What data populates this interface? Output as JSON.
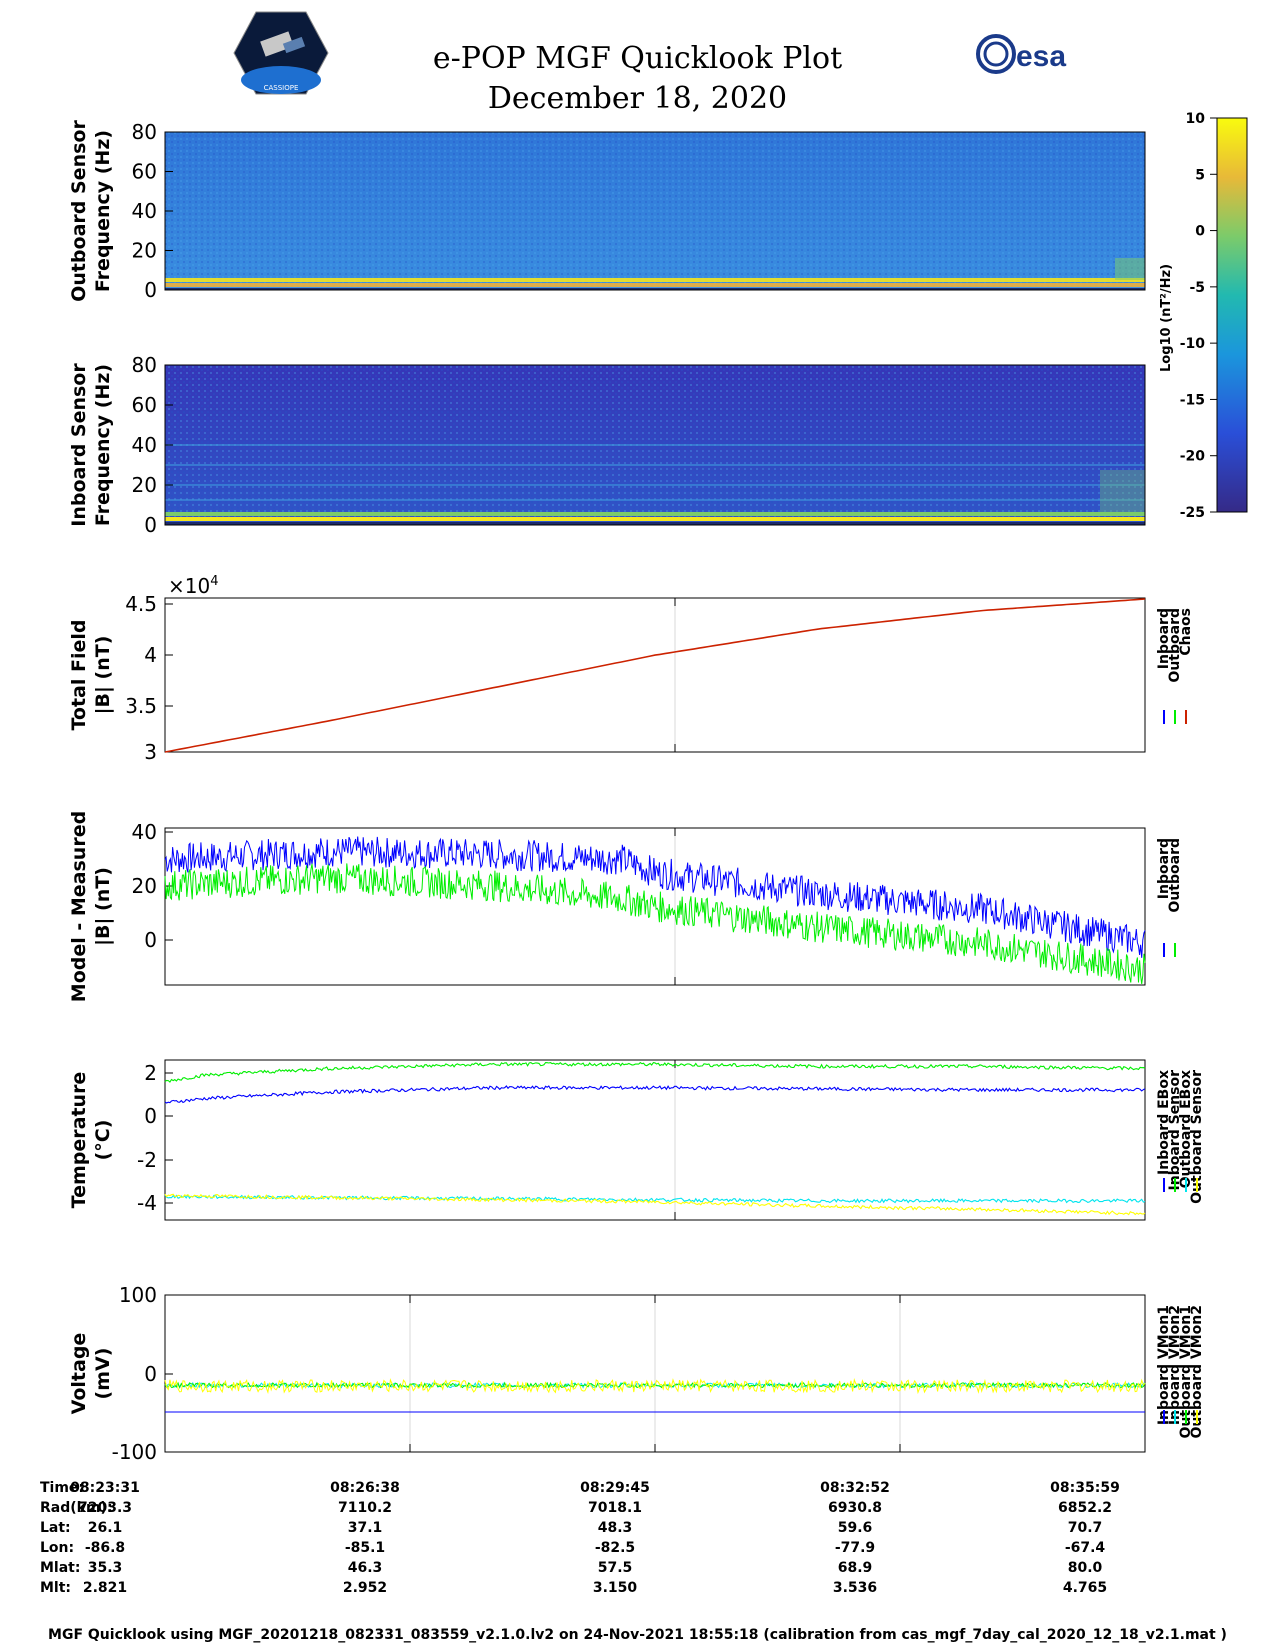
{
  "header": {
    "title": "e-POP MGF Quicklook Plot",
    "date": "December 18, 2020",
    "esa_logo_text": "esa",
    "cassiope_logo_text": "CASSIOPE"
  },
  "colors": {
    "inboard": "#0000ff",
    "outboard": "#00ee00",
    "chaos": "#cc2200",
    "yellow": "#ffff00",
    "cyan": "#00e5ee",
    "spec_low": "#3b2fa8",
    "spec_mid": "#2a8fe0",
    "spec_high": "#f5e61e"
  },
  "chart_data": [
    {
      "type": "heatmap",
      "ylabel": [
        "Outboard Sensor",
        "Frequency (Hz)"
      ],
      "ylim": [
        0,
        80
      ],
      "yticks": [
        "80",
        "60",
        "40",
        "20",
        "0"
      ],
      "colorbar": {
        "label": "Log10 (nT²/Hz)",
        "range": [
          -25,
          10
        ],
        "ticks": [
          "10",
          "5",
          "0",
          "-5",
          "-10",
          "-15",
          "-20",
          "-25"
        ]
      }
    },
    {
      "type": "heatmap",
      "ylabel": [
        "Inboard Sensor",
        "Frequency (Hz)"
      ],
      "ylim": [
        0,
        80
      ],
      "yticks": [
        "80",
        "60",
        "40",
        "20",
        "0"
      ]
    },
    {
      "type": "line",
      "ylabel": [
        "Total Field",
        "|B| (nT)"
      ],
      "ylim": [
        30000,
        45900
      ],
      "yticks": [
        "4.5",
        "4",
        "3.5",
        "3"
      ],
      "exponent_label": "×10",
      "exponent_power": "4",
      "legend": [
        "Inboard",
        "Outboard",
        "Chaos"
      ],
      "series": [
        {
          "name": "Chaos",
          "x": [
            0,
            2,
            4,
            6,
            8,
            10,
            12
          ],
          "values": [
            30000,
            33200,
            36600,
            40000,
            42700,
            44600,
            45800
          ]
        }
      ]
    },
    {
      "type": "line",
      "ylabel": [
        "Model - Measured",
        "|B| (nT)"
      ],
      "ylim": [
        -18,
        42
      ],
      "yticks": [
        "40",
        "20",
        "0"
      ],
      "legend": [
        "Inboard",
        "Outboard"
      ],
      "series": [
        {
          "name": "Inboard",
          "x": [
            0,
            2,
            4,
            5.6,
            6,
            8,
            10,
            12
          ],
          "values": [
            30,
            33,
            32,
            30,
            25,
            17,
            11,
            -2
          ]
        },
        {
          "name": "Outboard",
          "x": [
            0,
            2,
            4,
            5.6,
            6,
            8,
            10,
            12
          ],
          "values": [
            20,
            23,
            20,
            15,
            12,
            4,
            -2,
            -12
          ]
        }
      ]
    },
    {
      "type": "line",
      "ylabel": [
        "Temperature",
        "(°C)"
      ],
      "ylim": [
        -4.9,
        2.6
      ],
      "yticks": [
        "2",
        "0",
        "-2",
        "-4"
      ],
      "legend": [
        "Inboard EBox",
        "Inboard Sensor",
        "Outboard EBox",
        "Outboard Sensor"
      ],
      "series": [
        {
          "name": "Inboard EBox",
          "x": [
            0,
            0.5,
            2,
            4,
            6,
            8,
            10,
            12
          ],
          "values": [
            0.6,
            0.8,
            1.1,
            1.3,
            1.3,
            1.25,
            1.2,
            1.2
          ]
        },
        {
          "name": "Inboard Sensor",
          "x": [
            0,
            0.5,
            2,
            4,
            6,
            8,
            10,
            12
          ],
          "values": [
            1.6,
            1.9,
            2.2,
            2.4,
            2.4,
            2.3,
            2.3,
            2.2
          ]
        },
        {
          "name": "Outboard EBox",
          "x": [
            0,
            2,
            4,
            6,
            8,
            10,
            12
          ],
          "values": [
            -3.8,
            -3.85,
            -3.9,
            -3.95,
            -4.0,
            -4.0,
            -4.0
          ]
        },
        {
          "name": "Outboard Sensor",
          "x": [
            0,
            2,
            4,
            6,
            8,
            10,
            12
          ],
          "values": [
            -3.75,
            -3.85,
            -3.95,
            -4.05,
            -4.25,
            -4.4,
            -4.6
          ]
        }
      ]
    },
    {
      "type": "line",
      "ylabel": [
        "Voltage",
        "(mV)"
      ],
      "ylim": [
        -100,
        100
      ],
      "yticks": [
        "100",
        "0",
        "-100"
      ],
      "legend": [
        "Inboard VMon1",
        "Inboard VMon2",
        "Outboard VMon1",
        "Outboard VMon2"
      ],
      "series": [
        {
          "name": "Inboard VMon1",
          "x": [
            0,
            12
          ],
          "values": [
            -49,
            -49
          ]
        },
        {
          "name": "Inboard VMon2",
          "x": [
            0,
            12
          ],
          "values": [
            -15,
            -15
          ]
        },
        {
          "name": "Outboard VMon1",
          "x": [
            0,
            12
          ],
          "values": [
            -15,
            -15
          ]
        },
        {
          "name": "Outboard VMon2",
          "x": [
            0,
            12
          ],
          "values": [
            -16,
            -16
          ]
        }
      ]
    }
  ],
  "ephemeris": {
    "labels": [
      "Time:",
      "Rad(km):",
      "Lat:",
      "Lon:",
      "Mlat:",
      "Mlt:"
    ],
    "columns": [
      [
        "08:23:31",
        "7203.3",
        "26.1",
        "-86.8",
        "35.3",
        "2.821"
      ],
      [
        "08:26:38",
        "7110.2",
        "37.1",
        "-85.1",
        "46.3",
        "2.952"
      ],
      [
        "08:29:45",
        "7018.1",
        "48.3",
        "-82.5",
        "57.5",
        "3.150"
      ],
      [
        "08:32:52",
        "6930.8",
        "59.6",
        "-77.9",
        "68.9",
        "3.536"
      ],
      [
        "08:35:59",
        "6852.2",
        "70.7",
        "-67.4",
        "80.0",
        "4.765"
      ]
    ]
  },
  "caption": "MGF Quicklook using MGF_20201218_082331_083559_v2.1.0.lv2 on 24-Nov-2021 18:55:18 (calibration from cas_mgf_7day_cal_2020_12_18_v2.1.mat )"
}
